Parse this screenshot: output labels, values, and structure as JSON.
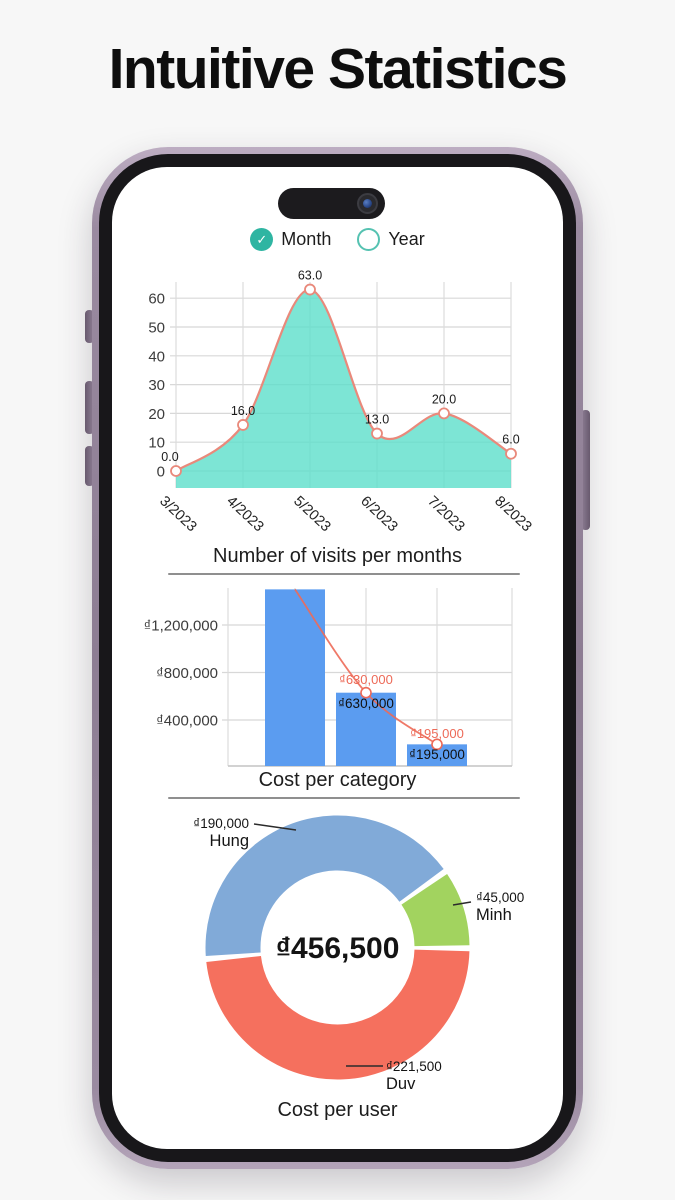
{
  "page": {
    "title": "Intuitive Statistics"
  },
  "toggle": {
    "options": [
      {
        "label": "Month",
        "selected": true
      },
      {
        "label": "Year",
        "selected": false
      }
    ]
  },
  "chart_data": [
    {
      "type": "area",
      "title": "Number of visits per months",
      "categories": [
        "3/2023",
        "4/2023",
        "5/2023",
        "6/2023",
        "7/2023",
        "8/2023"
      ],
      "values": [
        0,
        16,
        63,
        13,
        20,
        6
      ],
      "point_labels": [
        "0.0",
        "16.0",
        "63.0",
        "13.0",
        "20.0",
        "6.0"
      ],
      "y_ticks": [
        0,
        10,
        20,
        30,
        40,
        50,
        60
      ],
      "ylim": [
        0,
        65
      ],
      "grid": true,
      "fill_color": "#5cdfca",
      "line_color": "#e9897b",
      "marker_color": "#ffffff"
    },
    {
      "type": "bar",
      "title": "Cost per category",
      "categories": [
        "",
        "",
        ""
      ],
      "values": [
        1500000,
        630000,
        195000
      ],
      "values_estimated": [
        true,
        false,
        false
      ],
      "first_bar_clipped": true,
      "bar_labels": [
        "",
        "₫630,000",
        "₫195,000"
      ],
      "line_labels": [
        "",
        "₫630,000",
        "₫195,000"
      ],
      "y_tick_labels": [
        "₫400,000",
        "₫800,000",
        "₫1,200,000"
      ],
      "y_tick_values": [
        400000,
        800000,
        1200000
      ],
      "grid": true,
      "bar_color": "#5b9cf0",
      "line_color": "#ed6a58"
    },
    {
      "type": "donut",
      "title": "Cost per user",
      "center_label": "₫456,500",
      "total": 456500,
      "slices": [
        {
          "name": "Hung",
          "amount_label": "₫190,000",
          "value": 190000,
          "color": "#81aad8"
        },
        {
          "name": "Minh",
          "amount_label": "₫45,000",
          "value": 45000,
          "color": "#a2d35f"
        },
        {
          "name": "Duv",
          "amount_label": "₫221,500",
          "value": 221500,
          "color": "#f5705e"
        }
      ],
      "legend_position": "callouts"
    }
  ]
}
